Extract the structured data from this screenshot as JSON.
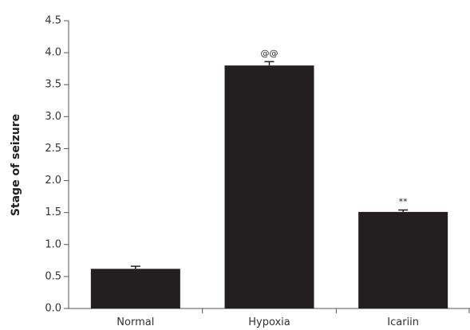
{
  "chart_data": {
    "type": "bar",
    "categories": [
      "Normal",
      "Hypoxia",
      "Icariin"
    ],
    "values": [
      0.62,
      3.8,
      1.51
    ],
    "errors": [
      0.04,
      0.06,
      0.03
    ],
    "significance": [
      "",
      "@@",
      "**"
    ],
    "ylabel": "Stage of seizure",
    "xlabel": "",
    "ylim": [
      0,
      4.5
    ],
    "yticks": [
      "0.0",
      "0.5",
      "1.0",
      "1.5",
      "2.0",
      "2.5",
      "3.0",
      "3.5",
      "4.0",
      "4.5"
    ],
    "bar_color": "#231f20",
    "grid": false
  }
}
